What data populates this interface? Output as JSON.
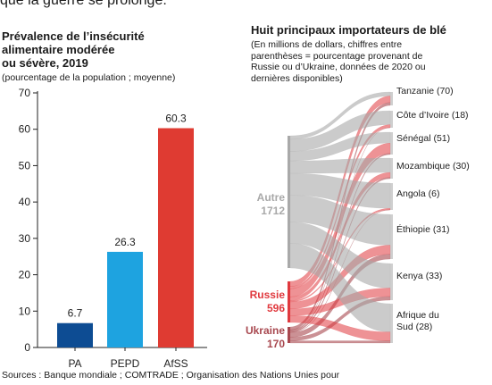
{
  "intro_text": "que la guerre se prolonge.",
  "left_panel": {
    "title_lines": [
      "Prévalence de l’insécurité",
      "alimentaire modérée",
      "ou sévère, 2019"
    ],
    "subtitle": "(pourcentage de la population ; moyenne)"
  },
  "right_panel": {
    "title": "Huit principaux importateurs de blé",
    "subtitle_lines": [
      "(En millions de dollars, chiffres entre",
      "parenthèses = pourcentage provenant de",
      "Russie ou d’Ukraine, données de 2020 ou",
      "dernières disponibles)"
    ]
  },
  "sources": "Sources : Banque mondiale ; COMTRADE ; Organisation des Nations Unies pour",
  "colors": {
    "pa": "#0d4c93",
    "pepd": "#1ea3e0",
    "afss": "#df3b32",
    "autre": "#a9a9a9",
    "russie": "#e0393e",
    "ukraine": "#a8484f"
  },
  "chart_data": [
    {
      "type": "bar",
      "categories": [
        "PA",
        "PEPD",
        "AfSS"
      ],
      "values": [
        6.7,
        26.3,
        60.3
      ],
      "value_labels": [
        "6.7",
        "26.3",
        "60.3"
      ],
      "yticks": [
        0,
        10,
        20,
        30,
        40,
        50,
        60,
        70
      ],
      "ylim": [
        0,
        70
      ],
      "grid": false
    },
    {
      "type": "sankey",
      "sources": [
        {
          "name": "Autre",
          "value": 1712,
          "value_label": "1712"
        },
        {
          "name": "Russie",
          "value": 596,
          "value_label": "596"
        },
        {
          "name": "Ukraine",
          "value": 170,
          "value_label": "170"
        }
      ],
      "targets": [
        {
          "label": "Tanzanie (70)",
          "russia_ukraine_pct": 70
        },
        {
          "label": "Côte d’Ivoire (18)",
          "russia_ukraine_pct": 18
        },
        {
          "label": "Sénégal (51)",
          "russia_ukraine_pct": 51
        },
        {
          "label": "Mozambique (30)",
          "russia_ukraine_pct": 30
        },
        {
          "label": "Angola (6)",
          "russia_ukraine_pct": 6
        },
        {
          "label": "Éthiopie (31)",
          "russia_ukraine_pct": 31
        },
        {
          "label": "Kenya (33)",
          "russia_ukraine_pct": 33
        },
        {
          "label": "Afrique du Sud (28)",
          "russia_ukraine_pct": 28
        }
      ]
    }
  ]
}
